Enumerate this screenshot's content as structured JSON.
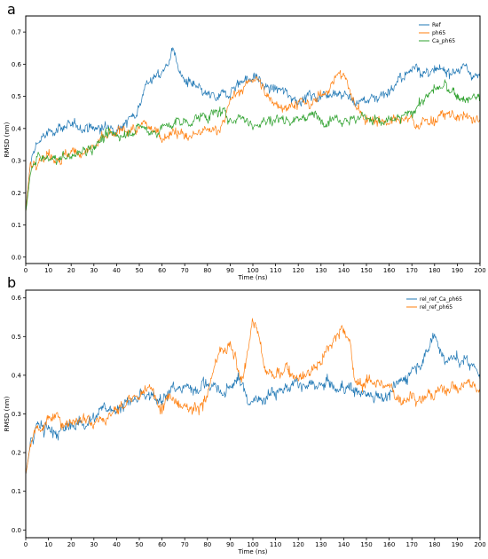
{
  "chart_data": [
    {
      "panel_label": "a",
      "type": "line",
      "xlabel": "Time (ns)",
      "ylabel": "RMSD (nm)",
      "xlim": [
        0,
        200
      ],
      "ylim": [
        -0.02,
        0.75
      ],
      "xticks": [
        0,
        10,
        20,
        30,
        40,
        50,
        60,
        70,
        80,
        90,
        100,
        110,
        120,
        130,
        140,
        150,
        160,
        170,
        180,
        190,
        200
      ],
      "xtick_labels": [
        "0",
        "10",
        "20",
        "30",
        "40",
        "50",
        "60",
        "70",
        "80",
        "90",
        "100",
        "110",
        "120",
        "130",
        "140",
        "150",
        "160",
        "170",
        "180",
        "190",
        "200"
      ],
      "yticks": [
        0.0,
        0.1,
        0.2,
        0.3,
        0.4,
        0.5,
        0.6,
        0.7
      ],
      "ytick_labels": [
        "0.0",
        "0.1",
        "0.2",
        "0.3",
        "0.4",
        "0.5",
        "0.6",
        "0.7"
      ],
      "grid": false,
      "legend_position": "top-right",
      "x": [
        0,
        2,
        5,
        10,
        15,
        20,
        25,
        30,
        35,
        40,
        45,
        50,
        52,
        55,
        60,
        63,
        65,
        67,
        70,
        75,
        80,
        85,
        90,
        95,
        100,
        103,
        105,
        110,
        115,
        120,
        125,
        130,
        135,
        140,
        145,
        150,
        155,
        160,
        165,
        170,
        172,
        175,
        180,
        185,
        190,
        195,
        200
      ],
      "series": [
        {
          "name": "Ref",
          "color": "#1f77b4",
          "values": [
            0.14,
            0.29,
            0.36,
            0.38,
            0.41,
            0.4,
            0.41,
            0.4,
            0.4,
            0.41,
            0.42,
            0.47,
            0.53,
            0.55,
            0.57,
            0.61,
            0.66,
            0.58,
            0.55,
            0.52,
            0.5,
            0.49,
            0.52,
            0.55,
            0.56,
            0.55,
            0.53,
            0.52,
            0.51,
            0.49,
            0.5,
            0.5,
            0.52,
            0.51,
            0.48,
            0.49,
            0.5,
            0.52,
            0.55,
            0.58,
            0.61,
            0.57,
            0.57,
            0.58,
            0.59,
            0.58,
            0.56
          ]
        },
        {
          "name": "ph65",
          "color": "#ff7f0e",
          "values": [
            0.14,
            0.29,
            0.31,
            0.32,
            0.31,
            0.32,
            0.33,
            0.34,
            0.37,
            0.38,
            0.4,
            0.39,
            0.41,
            0.4,
            0.38,
            0.38,
            0.4,
            0.39,
            0.37,
            0.38,
            0.39,
            0.4,
            0.48,
            0.52,
            0.56,
            0.54,
            0.51,
            0.48,
            0.47,
            0.48,
            0.47,
            0.5,
            0.55,
            0.57,
            0.47,
            0.43,
            0.43,
            0.42,
            0.42,
            0.43,
            0.41,
            0.42,
            0.43,
            0.44,
            0.44,
            0.43,
            0.42
          ]
        },
        {
          "name": "Ca_ph65",
          "color": "#2ca02c",
          "values": [
            0.14,
            0.26,
            0.31,
            0.3,
            0.31,
            0.31,
            0.33,
            0.35,
            0.37,
            0.38,
            0.39,
            0.4,
            0.4,
            0.39,
            0.4,
            0.41,
            0.41,
            0.42,
            0.42,
            0.43,
            0.44,
            0.45,
            0.43,
            0.44,
            0.41,
            0.42,
            0.42,
            0.43,
            0.43,
            0.43,
            0.44,
            0.43,
            0.44,
            0.43,
            0.43,
            0.44,
            0.42,
            0.42,
            0.43,
            0.45,
            0.47,
            0.49,
            0.52,
            0.53,
            0.5,
            0.49,
            0.5
          ]
        }
      ]
    },
    {
      "panel_label": "b",
      "type": "line",
      "xlabel": "Time (ns)",
      "ylabel": "RMSD (nm)",
      "xlim": [
        0,
        200
      ],
      "ylim": [
        -0.02,
        0.62
      ],
      "xticks": [
        0,
        10,
        20,
        30,
        40,
        50,
        60,
        70,
        80,
        90,
        100,
        110,
        120,
        130,
        140,
        150,
        160,
        170,
        180,
        190,
        200
      ],
      "xtick_labels": [
        "0",
        "10",
        "20",
        "30",
        "40",
        "50",
        "60",
        "70",
        "80",
        "90",
        "100",
        "110",
        "120",
        "130",
        "140",
        "150",
        "160",
        "170",
        "180",
        "190",
        "200"
      ],
      "yticks": [
        0.0,
        0.1,
        0.2,
        0.3,
        0.4,
        0.5,
        0.6
      ],
      "ytick_labels": [
        "0.0",
        "0.1",
        "0.2",
        "0.3",
        "0.4",
        "0.5",
        "0.6"
      ],
      "grid": false,
      "legend_position": "top-right",
      "x": [
        0,
        2,
        5,
        10,
        15,
        20,
        25,
        30,
        35,
        40,
        45,
        50,
        55,
        60,
        65,
        70,
        75,
        80,
        83,
        85,
        88,
        90,
        93,
        95,
        98,
        100,
        102,
        105,
        110,
        115,
        120,
        125,
        130,
        133,
        137,
        140,
        143,
        145,
        150,
        155,
        160,
        165,
        170,
        175,
        178,
        180,
        183,
        185,
        190,
        195,
        200
      ],
      "series": [
        {
          "name": "rel_ref_Ca_ph65",
          "color": "#1f77b4",
          "values": [
            0.14,
            0.22,
            0.27,
            0.26,
            0.25,
            0.27,
            0.28,
            0.29,
            0.31,
            0.32,
            0.33,
            0.34,
            0.34,
            0.35,
            0.36,
            0.37,
            0.37,
            0.38,
            0.37,
            0.36,
            0.35,
            0.37,
            0.39,
            0.38,
            0.33,
            0.34,
            0.33,
            0.35,
            0.36,
            0.37,
            0.37,
            0.37,
            0.37,
            0.38,
            0.36,
            0.37,
            0.37,
            0.36,
            0.35,
            0.35,
            0.35,
            0.38,
            0.42,
            0.44,
            0.48,
            0.51,
            0.46,
            0.44,
            0.44,
            0.43,
            0.41
          ]
        },
        {
          "name": "rel_ref_ph65",
          "color": "#ff7f0e",
          "values": [
            0.14,
            0.22,
            0.27,
            0.28,
            0.29,
            0.28,
            0.29,
            0.29,
            0.29,
            0.31,
            0.33,
            0.35,
            0.36,
            0.33,
            0.35,
            0.32,
            0.32,
            0.34,
            0.42,
            0.45,
            0.46,
            0.48,
            0.42,
            0.37,
            0.48,
            0.55,
            0.52,
            0.42,
            0.39,
            0.42,
            0.4,
            0.41,
            0.44,
            0.47,
            0.5,
            0.53,
            0.47,
            0.38,
            0.38,
            0.39,
            0.36,
            0.34,
            0.35,
            0.34,
            0.35,
            0.35,
            0.36,
            0.37,
            0.37,
            0.38,
            0.36
          ]
        }
      ]
    }
  ]
}
